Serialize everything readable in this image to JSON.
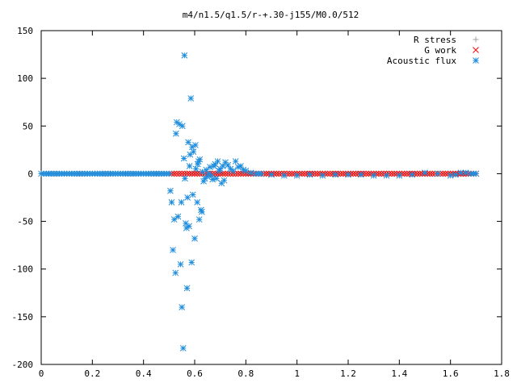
{
  "chart_data": {
    "type": "scatter",
    "title": "m4/n1.5/q1.5/r-+.30-j155/M0.0/512",
    "xlabel": "",
    "ylabel": "",
    "xlim": [
      0,
      1.8
    ],
    "ylim": [
      -200,
      150
    ],
    "x_ticks": [
      "0",
      "0.2",
      "0.4",
      "0.6",
      "0.8",
      "1",
      "1.2",
      "1.4",
      "1.6",
      "1.8"
    ],
    "y_ticks": [
      "150",
      "100",
      "50",
      "0",
      "-50",
      "-100",
      "-150",
      "-200"
    ],
    "grid": false,
    "legend_position": "top-right",
    "series": [
      {
        "name": "R stress",
        "marker": "plus",
        "color": "#a0a0a0",
        "x": [
          0.0,
          0.1,
          0.2,
          0.3,
          0.4,
          0.5,
          0.6,
          0.7,
          0.8,
          0.9,
          1.0,
          1.1,
          1.2,
          1.3,
          1.4,
          1.5,
          1.6,
          1.7
        ],
        "y": [
          0,
          0,
          0,
          0,
          0,
          0,
          0,
          0,
          0,
          0,
          0,
          0,
          0,
          0,
          0,
          0,
          0,
          0
        ]
      },
      {
        "name": "G work",
        "marker": "cross",
        "color": "#ff0000",
        "x": [
          0.51,
          0.52,
          0.53,
          0.54,
          0.55,
          0.56,
          0.57,
          0.58,
          0.59,
          0.6,
          0.62,
          0.64,
          0.66,
          0.68,
          0.7,
          0.72,
          0.74,
          0.76,
          0.78,
          0.8,
          0.85,
          0.9,
          0.95,
          1.0,
          1.05,
          1.1,
          1.15,
          1.2,
          1.25,
          1.3,
          1.35,
          1.4,
          1.45,
          1.5,
          1.55,
          1.6,
          1.65,
          1.7
        ],
        "y": [
          0,
          0,
          0,
          0,
          0,
          0,
          0,
          0,
          0,
          0,
          0,
          0,
          0,
          0,
          0,
          0,
          0,
          0,
          0,
          0,
          0,
          0,
          0,
          0,
          0,
          0,
          0,
          0,
          0,
          0,
          0,
          0,
          0,
          0,
          0,
          0,
          0,
          0
        ]
      },
      {
        "name": "Acoustic flux",
        "marker": "star",
        "color": "#1e8cdc",
        "x": [
          0.0,
          0.05,
          0.1,
          0.15,
          0.2,
          0.25,
          0.3,
          0.35,
          0.4,
          0.45,
          0.5,
          0.505,
          0.51,
          0.515,
          0.52,
          0.525,
          0.527,
          0.53,
          0.535,
          0.54,
          0.545,
          0.548,
          0.55,
          0.552,
          0.555,
          0.558,
          0.56,
          0.562,
          0.565,
          0.568,
          0.57,
          0.572,
          0.575,
          0.578,
          0.58,
          0.582,
          0.585,
          0.588,
          0.59,
          0.593,
          0.595,
          0.6,
          0.603,
          0.605,
          0.61,
          0.612,
          0.615,
          0.618,
          0.62,
          0.625,
          0.628,
          0.63,
          0.635,
          0.64,
          0.645,
          0.65,
          0.655,
          0.66,
          0.665,
          0.67,
          0.675,
          0.68,
          0.685,
          0.69,
          0.695,
          0.7,
          0.705,
          0.71,
          0.715,
          0.72,
          0.73,
          0.74,
          0.75,
          0.76,
          0.77,
          0.78,
          0.79,
          0.8,
          0.82,
          0.84,
          0.86,
          0.9,
          0.95,
          1.0,
          1.05,
          1.1,
          1.15,
          1.2,
          1.25,
          1.3,
          1.35,
          1.4,
          1.45,
          1.5,
          1.55,
          1.6,
          1.62,
          1.64,
          1.66,
          1.68,
          1.7
        ],
        "y": [
          0,
          0,
          0,
          0,
          0,
          0,
          0,
          0,
          0,
          0,
          0,
          -18,
          -30,
          -80,
          -48,
          -104,
          42,
          54,
          -45,
          52,
          -95,
          -30,
          -140,
          50,
          -183,
          16,
          124,
          -5,
          -52,
          -57,
          -120,
          -25,
          33,
          -55,
          8,
          20,
          79,
          -93,
          28,
          -22,
          23,
          -68,
          30,
          5,
          -30,
          10,
          13,
          -48,
          15,
          -38,
          -40,
          2,
          -8,
          -5,
          4,
          -3,
          0,
          7,
          -2,
          -6,
          8,
          10,
          -5,
          13,
          3,
          5,
          -10,
          8,
          -7,
          12,
          9,
          5,
          3,
          13,
          7,
          8,
          4,
          3,
          1,
          0,
          0,
          -1,
          -2,
          -2,
          -1,
          -2,
          -1,
          -1,
          -1,
          -2,
          -2,
          -2,
          -1,
          1,
          0,
          -2,
          -1,
          1,
          1,
          0,
          0
        ]
      }
    ]
  }
}
